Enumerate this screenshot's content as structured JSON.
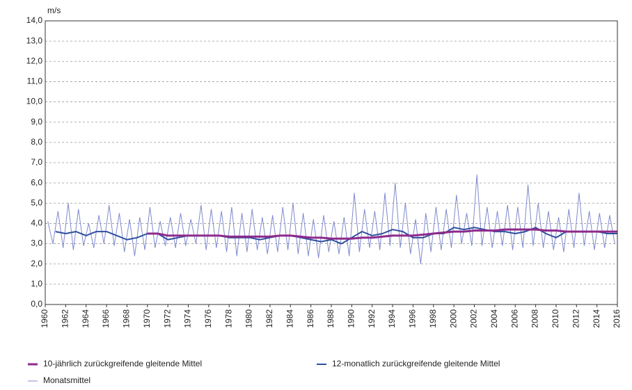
{
  "chart_data": {
    "type": "line",
    "y_label": "m/s",
    "xlim": [
      1960,
      2016
    ],
    "xticks": [
      1960,
      1962,
      1964,
      1966,
      1968,
      1970,
      1972,
      1974,
      1976,
      1978,
      1980,
      1982,
      1984,
      1986,
      1988,
      1990,
      1992,
      1994,
      1996,
      1998,
      2000,
      2002,
      2004,
      2006,
      2008,
      2010,
      2012,
      2014,
      2016
    ],
    "ylim": [
      0,
      14
    ],
    "yticks": [
      {
        "value": 0,
        "label": "0,0"
      },
      {
        "value": 1,
        "label": "1,0"
      },
      {
        "value": 2,
        "label": "2,0"
      },
      {
        "value": 3,
        "label": "3,0"
      },
      {
        "value": 4,
        "label": "4,0"
      },
      {
        "value": 5,
        "label": "5,0"
      },
      {
        "value": 6,
        "label": "6,0"
      },
      {
        "value": 7,
        "label": "7,0"
      },
      {
        "value": 8,
        "label": "8,0"
      },
      {
        "value": 9,
        "label": "9,0"
      },
      {
        "value": 10,
        "label": "10,0"
      },
      {
        "value": 11,
        "label": "11,0"
      },
      {
        "value": 12,
        "label": "12,0"
      },
      {
        "value": 13,
        "label": "13,0"
      },
      {
        "value": 14,
        "label": "14,0"
      }
    ],
    "grid": true,
    "series": [
      {
        "name": "Monatsmittel",
        "color": "#7f89cc",
        "width": 1,
        "x": [
          1960.25,
          1960.75,
          1961.25,
          1961.75,
          1962.25,
          1962.75,
          1963.25,
          1963.75,
          1964.25,
          1964.75,
          1965.25,
          1965.75,
          1966.25,
          1966.75,
          1967.25,
          1967.75,
          1968.25,
          1968.75,
          1969.25,
          1969.75,
          1970.25,
          1970.75,
          1971.25,
          1971.75,
          1972.25,
          1972.75,
          1973.25,
          1973.75,
          1974.25,
          1974.75,
          1975.25,
          1975.75,
          1976.25,
          1976.75,
          1977.25,
          1977.75,
          1978.25,
          1978.75,
          1979.25,
          1979.75,
          1980.25,
          1980.75,
          1981.25,
          1981.75,
          1982.25,
          1982.75,
          1983.25,
          1983.75,
          1984.25,
          1984.75,
          1985.25,
          1985.75,
          1986.25,
          1986.75,
          1987.25,
          1987.75,
          1988.25,
          1988.75,
          1989.25,
          1989.75,
          1990.25,
          1990.75,
          1991.25,
          1991.75,
          1992.25,
          1992.75,
          1993.25,
          1993.75,
          1994.25,
          1994.75,
          1995.25,
          1995.75,
          1996.25,
          1996.75,
          1997.25,
          1997.75,
          1998.25,
          1998.75,
          1999.25,
          1999.75,
          2000.25,
          2000.75,
          2001.25,
          2001.75,
          2002.25,
          2002.75,
          2003.25,
          2003.75,
          2004.25,
          2004.75,
          2005.25,
          2005.75,
          2006.25,
          2006.75,
          2007.25,
          2007.75,
          2008.25,
          2008.75,
          2009.25,
          2009.75,
          2010.25,
          2010.75,
          2011.25,
          2011.75,
          2012.25,
          2012.75,
          2013.25,
          2013.75,
          2014.25,
          2014.75,
          2015.25,
          2015.75
        ],
        "values": [
          4.1,
          3.0,
          4.6,
          2.8,
          5.0,
          2.7,
          4.7,
          2.9,
          4.0,
          2.8,
          4.4,
          3.0,
          4.9,
          2.9,
          4.5,
          2.6,
          4.2,
          2.4,
          4.3,
          2.7,
          4.8,
          2.8,
          4.1,
          2.9,
          4.3,
          2.8,
          4.5,
          2.9,
          4.2,
          3.0,
          4.9,
          2.7,
          4.7,
          2.8,
          4.6,
          2.6,
          4.8,
          2.4,
          4.5,
          2.6,
          4.7,
          2.7,
          4.3,
          2.5,
          4.4,
          2.6,
          4.8,
          2.7,
          5.0,
          2.5,
          4.5,
          2.4,
          4.2,
          2.3,
          4.4,
          2.6,
          4.1,
          2.5,
          4.3,
          2.4,
          5.5,
          2.6,
          4.7,
          2.8,
          4.6,
          2.7,
          5.5,
          2.9,
          6.0,
          2.8,
          5.0,
          2.5,
          4.2,
          2.0,
          4.5,
          2.6,
          4.8,
          2.7,
          4.7,
          2.8,
          5.4,
          3.0,
          4.5,
          2.9,
          6.4,
          2.9,
          4.8,
          2.8,
          4.6,
          2.9,
          4.9,
          2.7,
          4.8,
          2.8,
          5.9,
          2.9,
          5.0,
          2.8,
          4.6,
          2.7,
          4.3,
          2.6,
          4.7,
          2.8,
          5.5,
          2.9,
          4.6,
          2.7,
          4.5,
          2.8,
          4.4,
          3.0
        ]
      },
      {
        "name": "12-monatlich zurückgreifende gleitende Mittel",
        "color": "#2e4f9e",
        "width": 2,
        "x": [
          1961,
          1962,
          1963,
          1964,
          1965,
          1966,
          1967,
          1968,
          1969,
          1970,
          1971,
          1972,
          1973,
          1974,
          1975,
          1976,
          1977,
          1978,
          1979,
          1980,
          1981,
          1982,
          1983,
          1984,
          1985,
          1986,
          1987,
          1988,
          1989,
          1990,
          1991,
          1992,
          1993,
          1994,
          1995,
          1996,
          1997,
          1998,
          1999,
          2000,
          2001,
          2002,
          2003,
          2004,
          2005,
          2006,
          2007,
          2008,
          2009,
          2010,
          2011,
          2012,
          2013,
          2014,
          2015,
          2016
        ],
        "values": [
          3.6,
          3.5,
          3.6,
          3.4,
          3.6,
          3.6,
          3.4,
          3.2,
          3.3,
          3.5,
          3.5,
          3.2,
          3.3,
          3.4,
          3.4,
          3.4,
          3.4,
          3.3,
          3.3,
          3.3,
          3.2,
          3.3,
          3.4,
          3.4,
          3.3,
          3.2,
          3.1,
          3.2,
          3.0,
          3.3,
          3.6,
          3.4,
          3.5,
          3.7,
          3.6,
          3.3,
          3.3,
          3.5,
          3.5,
          3.8,
          3.7,
          3.8,
          3.7,
          3.6,
          3.6,
          3.5,
          3.6,
          3.8,
          3.5,
          3.3,
          3.6,
          3.6,
          3.6,
          3.6,
          3.5,
          3.5
        ]
      },
      {
        "name": "10-jährlich zurückgreifende gleitende Mittel",
        "color": "#8e2a8c",
        "width": 3,
        "x": [
          1970,
          1971,
          1972,
          1973,
          1974,
          1975,
          1976,
          1977,
          1978,
          1979,
          1980,
          1981,
          1982,
          1983,
          1984,
          1985,
          1986,
          1987,
          1988,
          1989,
          1990,
          1991,
          1992,
          1993,
          1994,
          1995,
          1996,
          1997,
          1998,
          1999,
          2000,
          2001,
          2002,
          2003,
          2004,
          2005,
          2006,
          2007,
          2008,
          2009,
          2010,
          2011,
          2012,
          2013,
          2014,
          2015,
          2016
        ],
        "values": [
          3.5,
          3.5,
          3.4,
          3.4,
          3.4,
          3.4,
          3.4,
          3.4,
          3.35,
          3.35,
          3.35,
          3.35,
          3.35,
          3.4,
          3.4,
          3.35,
          3.3,
          3.3,
          3.25,
          3.25,
          3.25,
          3.3,
          3.3,
          3.35,
          3.4,
          3.4,
          3.4,
          3.45,
          3.5,
          3.55,
          3.6,
          3.6,
          3.65,
          3.65,
          3.65,
          3.7,
          3.7,
          3.7,
          3.7,
          3.65,
          3.65,
          3.6,
          3.6,
          3.6,
          3.6,
          3.6,
          3.6
        ]
      }
    ]
  }
}
